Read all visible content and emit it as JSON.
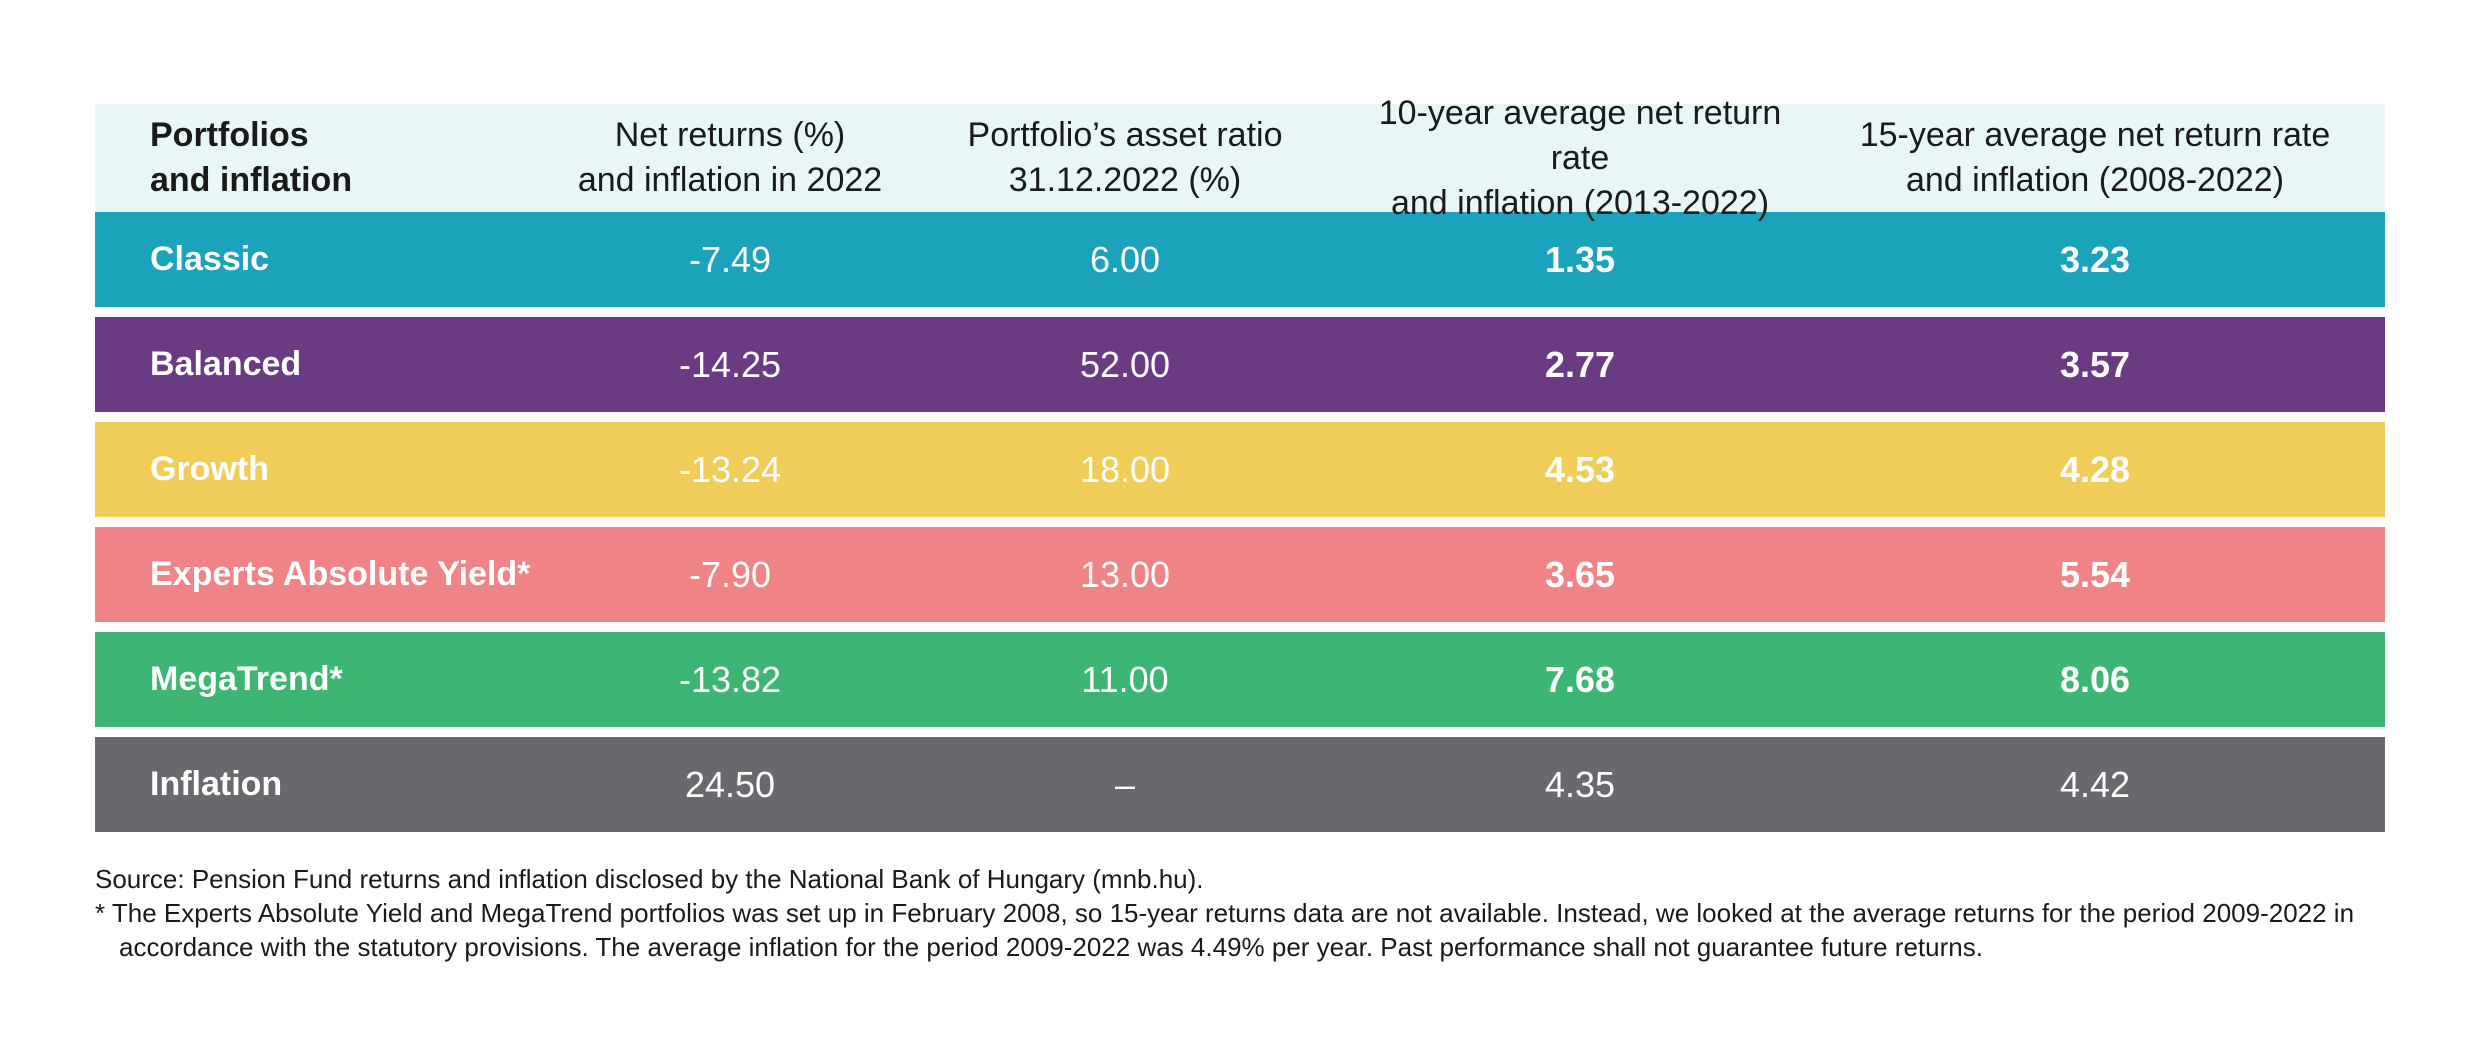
{
  "header": {
    "col0": [
      "Portfolios",
      "and inflation"
    ],
    "col1": [
      "Net returns (%)",
      "and inflation in 2022"
    ],
    "col2": [
      "Portfolio’s asset ratio",
      "31.12.2022 (%)"
    ],
    "col3": [
      "10-year average net return rate",
      "and inflation (2013-2022)"
    ],
    "col4": [
      "15-year average net return rate",
      "and inflation (2008-2022)"
    ]
  },
  "rows": [
    {
      "name": "Classic",
      "net_2022": "-7.49",
      "asset_ratio": "6.00",
      "avg10": "1.35",
      "avg15": "3.23",
      "color": "#1aa3bb"
    },
    {
      "name": "Balanced",
      "net_2022": "-14.25",
      "asset_ratio": "52.00",
      "avg10": "2.77",
      "avg15": "3.57",
      "color": "#6a3a82"
    },
    {
      "name": "Growth",
      "net_2022": "-13.24",
      "asset_ratio": "18.00",
      "avg10": "4.53",
      "avg15": "4.28",
      "color": "#f0cd58"
    },
    {
      "name": "Experts Absolute Yield*",
      "net_2022": "-7.90",
      "asset_ratio": "13.00",
      "avg10": "3.65",
      "avg15": "5.54",
      "color": "#ef8386"
    },
    {
      "name": "MegaTrend*",
      "net_2022": "-13.82",
      "asset_ratio": "11.00",
      "avg10": "7.68",
      "avg15": "8.06",
      "color": "#3db673"
    },
    {
      "name": "Inflation",
      "net_2022": "24.50",
      "asset_ratio": "–",
      "avg10": "4.35",
      "avg15": "4.42",
      "color": "#67696c"
    }
  ],
  "footer": {
    "source": "Source: Pension Fund returns and inflation disclosed by the National Bank of Hungary (mnb.hu).",
    "note": "* The Experts Absolute Yield and MegaTrend portfolios was set up in February 2008, so 15-year returns data are not available. Instead, we looked at the average returns for the period 2009-2022 in accordance with the statutory provisions. The average inflation for the period 2009-2022 was 4.49% per year. Past performance shall not guarantee future returns."
  }
}
